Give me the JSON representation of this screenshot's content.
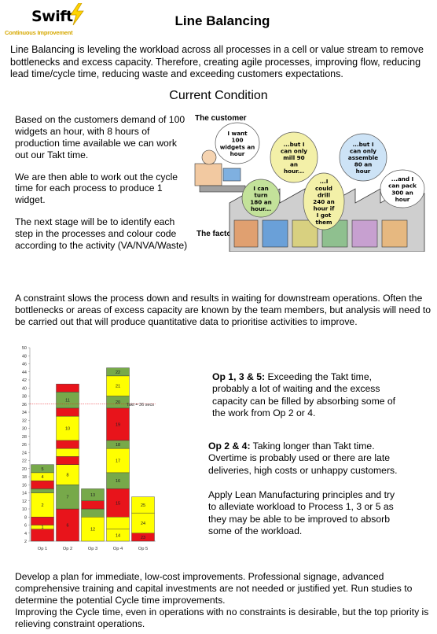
{
  "logo": {
    "word": "Swift",
    "subtitle": "Continuous Improvement"
  },
  "page": {
    "title": "Line Balancing",
    "intro": "Line Balancing is leveling the workload across all processes in a cell or value stream to remove bottlenecks and excess capacity. Therefore, creating agile processes, improving flow, reducing lead time/cycle time, reducing waste and exceeding customers expectations.",
    "section_title": "Current Condition"
  },
  "current_condition": {
    "p1": "Based on the customers demand of 100 widgets an hour, with 8 hours of production time available we can work out our Takt time.",
    "p2": "We are then able to work out the cycle time for each process to produce 1 widget.",
    "p3": "The next stage will be to identify each step in the processes and colour code according to the activity (VA/NVA/Waste)"
  },
  "cartoon": {
    "customer_label": "The customer",
    "factory_label": "The factory",
    "bubbles": [
      {
        "lines": [
          "I want",
          "100",
          "widgets an",
          "hour"
        ]
      },
      {
        "lines": [
          "...but I",
          "can only",
          "mill 90",
          "an",
          "hour..."
        ]
      },
      {
        "lines": [
          "...but I",
          "can only",
          "assemble",
          "80 an",
          "hour"
        ]
      },
      {
        "lines": [
          "I can",
          "turn",
          "180 an",
          "hour..."
        ]
      },
      {
        "lines": [
          "...I",
          "could",
          "drill",
          "240 an",
          "hour if",
          "I got",
          "them"
        ]
      },
      {
        "lines": [
          "...and I",
          "can pack",
          "300 an",
          "hour"
        ]
      }
    ]
  },
  "constraint_text": "A constraint slows the process down and results in waiting for downstream operations. Often the bottlenecks or areas of excess capacity are known by the team members, but analysis will need to be carried out that will produce quantitative data to prioritise activities to improve.",
  "notes": {
    "op135_label": "Op 1, 3 & 5:",
    "op135_text": " Exceeding the Takt time, probably a lot of waiting and the excess capacity can be filled by absorbing some of the work from Op 2 or 4.",
    "op24_label": "Op 2 & 4:",
    "op24_text": " Taking longer than Takt time. Overtime is probably used or there are late deliveries, high costs or unhappy customers.",
    "apply_text": "Apply Lean Manufacturing principles and try to alleviate workload to Process 1, 3 or 5 as they may be able to be improved to absorb some of the workload."
  },
  "closing": {
    "p1": "Develop a plan for immediate, low-cost improvements. Professional signage, advanced comprehensive training and capital investments are not needed or justified yet. Run studies to determine the potential Cycle time improvements.",
    "p2": "Improving the Cycle time, even in operations with no constraints is desirable, but the top priority is relieving constraint operations."
  },
  "colors": {
    "red": "#e8141b",
    "yellow": "#ffff00",
    "green": "#77a94a",
    "takt_line": "#e8141b"
  },
  "chart_data": {
    "type": "bar",
    "stacked": true,
    "categories": [
      "Op 1",
      "Op 2",
      "Op 3",
      "Op 4",
      "Op 5"
    ],
    "ylim": [
      2,
      50
    ],
    "yticks": [
      2,
      4,
      6,
      8,
      10,
      12,
      14,
      16,
      18,
      20,
      22,
      24,
      26,
      28,
      30,
      32,
      34,
      36,
      38,
      40,
      42,
      44,
      46,
      48,
      50
    ],
    "takt": {
      "value": 36,
      "label": "Takt = 36 secs"
    },
    "bars": [
      {
        "category": "Op 1",
        "segments": [
          {
            "color": "red",
            "to": 5
          },
          {
            "color": "yellow",
            "to": 6,
            "label": "1"
          },
          {
            "color": "red",
            "to": 8
          },
          {
            "color": "yellow",
            "to": 14,
            "label": "2"
          },
          {
            "color": "green",
            "to": 15
          },
          {
            "color": "red",
            "to": 17
          },
          {
            "color": "yellow",
            "to": 19,
            "label": "4"
          },
          {
            "color": "green",
            "to": 21,
            "label": "5"
          }
        ]
      },
      {
        "category": "Op 2",
        "segments": [
          {
            "color": "red",
            "to": 10,
            "label": "6"
          },
          {
            "color": "green",
            "to": 16,
            "label": "7"
          },
          {
            "color": "yellow",
            "to": 21,
            "label": "8"
          },
          {
            "color": "red",
            "to": 23
          },
          {
            "color": "yellow",
            "to": 25
          },
          {
            "color": "red",
            "to": 27
          },
          {
            "color": "yellow",
            "to": 33,
            "label": "10"
          },
          {
            "color": "red",
            "to": 35
          },
          {
            "color": "green",
            "to": 39,
            "label": "11"
          },
          {
            "color": "red",
            "to": 41
          }
        ]
      },
      {
        "category": "Op 3",
        "segments": [
          {
            "color": "yellow",
            "to": 8,
            "label": "12"
          },
          {
            "color": "green",
            "to": 10
          },
          {
            "color": "red",
            "to": 12
          },
          {
            "color": "green",
            "to": 15,
            "label": "13"
          }
        ]
      },
      {
        "category": "Op 4",
        "segments": [
          {
            "color": "yellow",
            "to": 5,
            "label": "14"
          },
          {
            "color": "yellow",
            "to": 8
          },
          {
            "color": "red",
            "to": 15,
            "label": "15"
          },
          {
            "color": "green",
            "to": 19,
            "label": "16"
          },
          {
            "color": "yellow",
            "to": 25,
            "label": "17"
          },
          {
            "color": "green",
            "to": 27,
            "label": "18"
          },
          {
            "color": "red",
            "to": 35,
            "label": "19"
          },
          {
            "color": "green",
            "to": 38,
            "label": "20"
          },
          {
            "color": "yellow",
            "to": 43,
            "label": "21"
          },
          {
            "color": "green",
            "to": 45,
            "label": "22"
          }
        ]
      },
      {
        "category": "Op 5",
        "segments": [
          {
            "color": "red",
            "to": 4,
            "label": "23"
          },
          {
            "color": "yellow",
            "to": 9,
            "label": "24"
          },
          {
            "color": "yellow",
            "to": 13,
            "label": "25"
          }
        ]
      }
    ]
  }
}
